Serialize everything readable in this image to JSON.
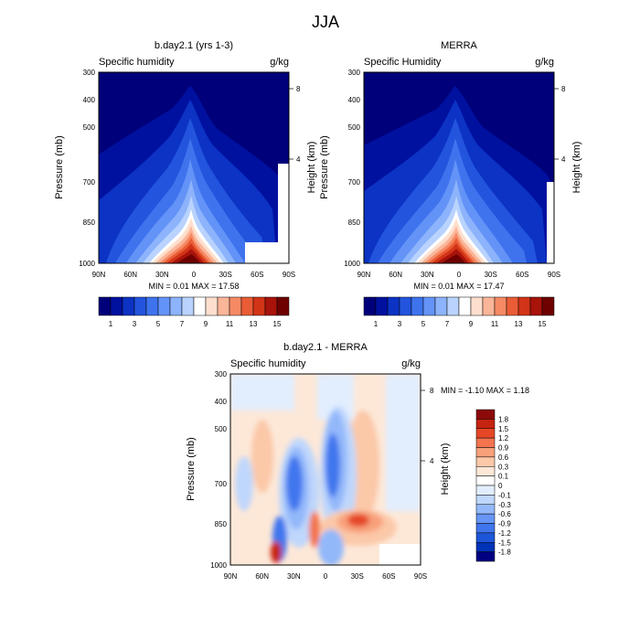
{
  "figure": {
    "title": "JJA"
  },
  "colors": {
    "full_scale": [
      "#00007a",
      "#0011a0",
      "#0c33c4",
      "#2354dd",
      "#3f73ee",
      "#6393f7",
      "#8cb3fb",
      "#b9d3fe",
      "#ffffff",
      "#fedfcd",
      "#fbb598",
      "#f58a64",
      "#ea5c35",
      "#d23417",
      "#a8130a",
      "#6e0000"
    ],
    "diff_scale": [
      "#000080",
      "#0033b8",
      "#1e56d9",
      "#3f76ee",
      "#6695f5",
      "#93b8fa",
      "#bfd7fc",
      "#e2eefe",
      "#ffffff",
      "#fde8d8",
      "#fbc8a8",
      "#f8a07a",
      "#f3744e",
      "#e54726",
      "#c52410",
      "#8c0a0a"
    ]
  },
  "chart_data": [
    {
      "type": "heatmap",
      "title": "b.day2.1 (yrs 1-3)",
      "left_label": "Specific humidity",
      "units": "g/kg",
      "xlabel": "",
      "ylabel": "Pressure (mb)",
      "ylabel_right": "Height (km)",
      "x_ticks": [
        "90N",
        "60N",
        "30N",
        "0",
        "30S",
        "60S",
        "90S"
      ],
      "y_ticks": [
        "300",
        "400",
        "500",
        "700",
        "850",
        "1000"
      ],
      "y_right_ticks": [
        "8",
        "4"
      ],
      "min_label": "MIN =   0.01   MAX =   17.58",
      "min": 0.01,
      "max": 17.58,
      "colorbar_labels": [
        "1",
        "3",
        "5",
        "7",
        "9",
        "11",
        "13",
        "15"
      ],
      "peak": {
        "lat": -8,
        "pressure": 1000,
        "value": 17.58
      }
    },
    {
      "type": "heatmap",
      "title": "MERRA",
      "left_label": "Specific Humidity",
      "units": "g/kg",
      "xlabel": "",
      "ylabel": "Pressure (mb)",
      "ylabel_right": "Height (km)",
      "x_ticks": [
        "90N",
        "60N",
        "30N",
        "0",
        "30S",
        "60S",
        "90S"
      ],
      "y_ticks": [
        "300",
        "400",
        "500",
        "700",
        "850",
        "1000"
      ],
      "y_right_ticks": [
        "8",
        "4"
      ],
      "min_label": "MIN =   0.01   MAX =   17.47",
      "min": 0.01,
      "max": 17.47,
      "colorbar_labels": [
        "1",
        "3",
        "5",
        "7",
        "9",
        "11",
        "13",
        "15"
      ],
      "peak": {
        "lat": -8,
        "pressure": 1000,
        "value": 17.47
      }
    },
    {
      "type": "heatmap",
      "title": "b.day2.1 - MERRA",
      "left_label": "Specific humidity",
      "units": "g/kg",
      "xlabel": "",
      "ylabel": "Pressure (mb)",
      "ylabel_right": "Height (km)",
      "x_ticks": [
        "90N",
        "60N",
        "30N",
        "0",
        "30S",
        "60S",
        "90S"
      ],
      "y_ticks": [
        "300",
        "400",
        "500",
        "700",
        "850",
        "1000"
      ],
      "y_right_ticks": [
        "8",
        "4"
      ],
      "min_label": "MIN =  -1.10  MAX =   1.18",
      "min": -1.1,
      "max": 1.18,
      "colorbar_labels": [
        "1.8",
        "1.5",
        "1.2",
        "0.9",
        "0.6",
        "0.3",
        "0.1",
        "0",
        "-0.1",
        "-0.3",
        "-0.6",
        "-0.9",
        "-1.2",
        "-1.5",
        "-1.8"
      ]
    }
  ]
}
